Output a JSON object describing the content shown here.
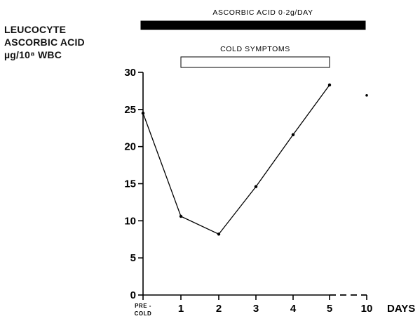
{
  "chart_data": {
    "type": "line",
    "ylabel": [
      "LEUCOCYTE",
      "ASCORBIC ACID",
      "µg/10⁸ WBC"
    ],
    "xlabel": "DAYS",
    "ylim": [
      0,
      30
    ],
    "yticks": [
      0,
      5,
      10,
      15,
      20,
      25,
      30
    ],
    "categories": [
      "PRE-COLD",
      "1",
      "2",
      "3",
      "4",
      "5",
      "10"
    ],
    "category_label_lines": [
      [
        "PRE -",
        "COLD"
      ],
      [
        "1"
      ],
      [
        "2"
      ],
      [
        "3"
      ],
      [
        "4"
      ],
      [
        "5"
      ],
      [
        "10"
      ]
    ],
    "series": [
      {
        "values": [
          24.5,
          10.6,
          8.2,
          14.6,
          21.6,
          28.3,
          null
        ]
      }
    ],
    "isolated_points": [
      {
        "category": "10",
        "value": 26.9
      }
    ],
    "broken_axis_between": [
      "5",
      "10"
    ],
    "grid": false,
    "bars": [
      {
        "label": "ASCORBIC ACID 0·2g/DAY",
        "from": "PRE-COLD",
        "to": "10",
        "fill": "#000000"
      },
      {
        "label": "COLD SYMPTOMS",
        "from": "1",
        "to": "5",
        "fill": "#ffffff"
      }
    ]
  }
}
